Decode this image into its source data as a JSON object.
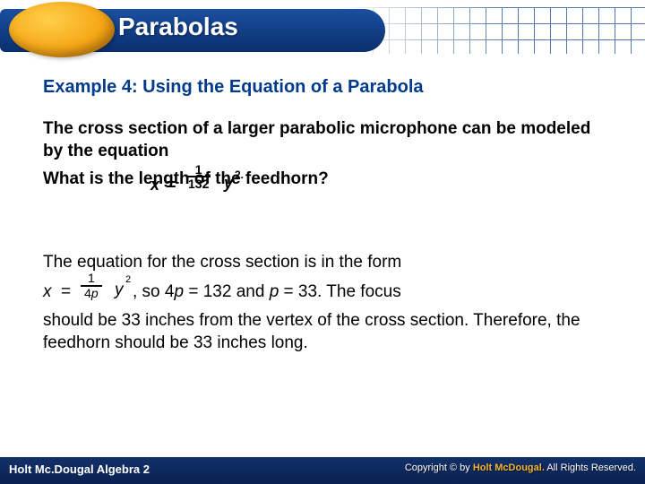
{
  "header": {
    "chapter_title": "Parabolas"
  },
  "example": {
    "heading": "Example 4: Using the Equation of a Parabola",
    "problem_line1": "The cross section of a larger parabolic microphone can be modeled by the equation",
    "problem_line2": "What is the length of the feedhorn?",
    "equation1": {
      "x": "x",
      "eq": "=",
      "num": "1",
      "den": "132",
      "y": "y",
      "exp": "2."
    },
    "solution_line1": "The equation for the cross section is in the form",
    "inline_eq": {
      "x": "x",
      "eq": "=",
      "num": "1",
      "den_4": "4",
      "den_p": "p",
      "y": "y",
      "exp": "2",
      "rest_a": ", so 4",
      "rest_p1": "p",
      "rest_b": " = 132 and ",
      "rest_p2": "p",
      "rest_c": " = 33. The focus"
    },
    "solution_line3": "should be 33 inches from the vertex of the cross section. Therefore, the feedhorn should be 33 inches long."
  },
  "footer": {
    "book": "Holt Mc.Dougal Algebra 2",
    "copyright_label": "Copyright © by",
    "publisher": "Holt McDougal.",
    "rights": "All Rights Reserved."
  },
  "colors": {
    "heading": "#003a8c",
    "footer_bg_top": "#12306a",
    "footer_bg_bottom": "#0a224f",
    "accent_gold": "#f2b430"
  }
}
